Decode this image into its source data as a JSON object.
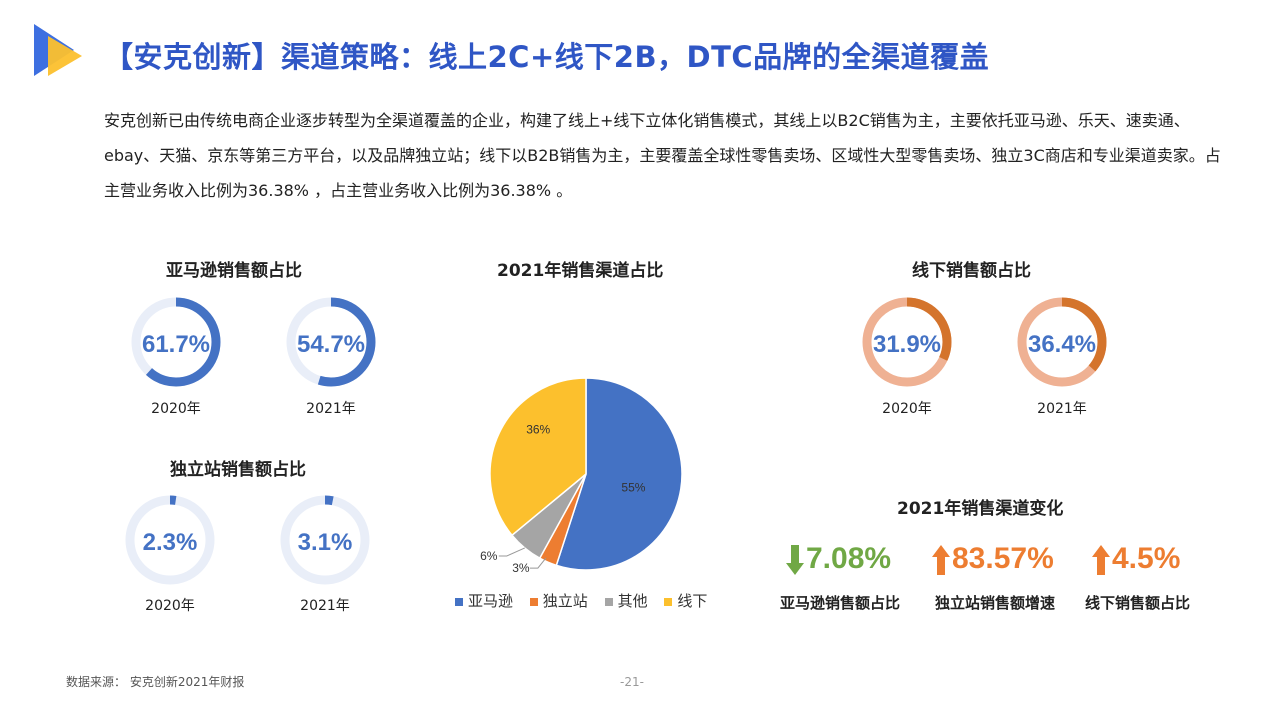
{
  "header": {
    "title": "【安克创新】渠道策略：线上2C+线下2B，DTC品牌的全渠道覆盖",
    "description": "安克创新已由传统电商企业逐步转型为全渠道覆盖的企业，构建了线上+线下立体化销售模式，其线上以B2C销售为主，主要依托亚马逊、乐天、速卖通、ebay、天猫、京东等第三方平台，以及品牌独立站；线下以B2B销售为主，主要覆盖全球性零售卖场、区域性大型零售卖场、独立3C商店和专业渠道卖家。占主营业务收入比例为36.38% ，占主营业务收入比例为36.38% 。"
  },
  "colors": {
    "blue": "#4472c4",
    "blue_light": "#e9eef8",
    "orange": "#d4742c",
    "salmon": "#efb193",
    "yellow": "#fcc02d",
    "gray": "#a5a5a5",
    "green": "#70a845",
    "bright_orange": "#ed7d31"
  },
  "chart_data": [
    {
      "type": "pie",
      "title": "亚马逊销售额占比",
      "categories": [
        "2020年"
      ],
      "values": [
        61.7
      ],
      "label": "61.7%"
    },
    {
      "type": "pie",
      "title": "亚马逊销售额占比",
      "categories": [
        "2021年"
      ],
      "values": [
        54.7
      ],
      "label": "54.7%"
    },
    {
      "type": "pie",
      "title": "独立站销售额占比",
      "categories": [
        "2020年"
      ],
      "values": [
        2.3
      ],
      "label": "2.3%"
    },
    {
      "type": "pie",
      "title": "独立站销售额占比",
      "categories": [
        "2021年"
      ],
      "values": [
        3.1
      ],
      "label": "3.1%"
    },
    {
      "type": "pie",
      "title": "线下销售额占比",
      "categories": [
        "2020年"
      ],
      "values": [
        31.9
      ],
      "label": "31.9%"
    },
    {
      "type": "pie",
      "title": "线下销售额占比",
      "categories": [
        "2021年"
      ],
      "values": [
        36.4
      ],
      "label": "36.4%"
    },
    {
      "type": "pie",
      "title": "2021年销售渠道占比",
      "categories": [
        "亚马逊",
        "独立站",
        "其他",
        "线下"
      ],
      "values": [
        55,
        3,
        6,
        36
      ],
      "labels": [
        "55%",
        "3%",
        "6%",
        "36%"
      ],
      "legend": "bottom"
    }
  ],
  "sections": {
    "amazon_title": "亚马逊销售额占比",
    "indep_title": "独立站销售额占比",
    "offline_title": "线下销售额占比",
    "pie_title": "2021年销售渠道占比",
    "change_title": "2021年销售渠道变化",
    "year_2020": "2020年",
    "year_2021": "2021年"
  },
  "changes": [
    {
      "value": "7.08%",
      "direction": "down",
      "label": "亚马逊销售额占比",
      "color": "#70a845"
    },
    {
      "value": "83.57%",
      "direction": "up",
      "label": "独立站销售额增速",
      "color": "#ed7d31"
    },
    {
      "value": "4.5%",
      "direction": "up",
      "label": "线下销售额占比",
      "color": "#ed7d31"
    }
  ],
  "footer": {
    "source": "数据来源： 安克创新2021年财报",
    "page": "-21-"
  }
}
